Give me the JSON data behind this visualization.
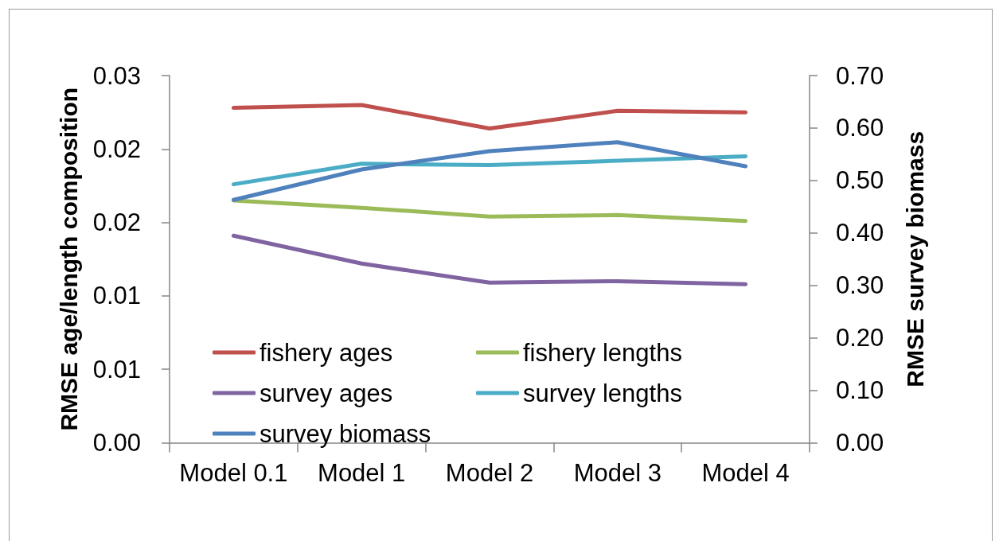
{
  "chart_data": {
    "type": "line",
    "ylabel": "RMSE age/length composition",
    "y2label": "RMSE survey biomass",
    "categories": [
      "Model 0.1",
      "Model 1",
      "Model 2",
      "Model 3",
      "Model 4"
    ],
    "series": [
      {
        "name": "fishery ages",
        "color": "#c0504d",
        "values": [
          0.0228,
          0.023,
          0.0214,
          0.0226,
          0.0225
        ]
      },
      {
        "name": "fishery lengths",
        "color": "#9bbb59",
        "values": [
          0.0165,
          0.016,
          0.0154,
          0.0155,
          0.0151
        ]
      },
      {
        "name": "survey ages",
        "color": "#8064a2",
        "values": [
          0.0141,
          0.0122,
          0.0109,
          0.011,
          0.0108
        ]
      },
      {
        "name": "survey lengths",
        "color": "#4bacc6",
        "values": [
          0.0176,
          0.019,
          0.0189,
          0.0192,
          0.0195
        ]
      },
      {
        "name": "survey biomass",
        "color": "#4f81bd",
        "axis": "y2",
        "values": [
          0.463,
          0.521,
          0.556,
          0.573,
          0.527
        ]
      }
    ],
    "ylim": [
      0,
      0.025
    ],
    "yticks": [
      {
        "value": 0,
        "label": "0.00"
      },
      {
        "value": 0.005,
        "label": "0.01"
      },
      {
        "value": 0.01,
        "label": "0.01"
      },
      {
        "value": 0.015,
        "label": "0.02"
      },
      {
        "value": 0.02,
        "label": "0.02"
      },
      {
        "value": 0.025,
        "label": "0.03"
      }
    ],
    "y2lim": [
      0,
      0.7
    ],
    "y2ticks": [
      {
        "value": 0,
        "label": "0.00"
      },
      {
        "value": 0.1,
        "label": "0.10"
      },
      {
        "value": 0.2,
        "label": "0.20"
      },
      {
        "value": 0.3,
        "label": "0.30"
      },
      {
        "value": 0.4,
        "label": "0.40"
      },
      {
        "value": 0.5,
        "label": "0.50"
      },
      {
        "value": 0.6,
        "label": "0.60"
      },
      {
        "value": 0.7,
        "label": "0.70"
      }
    ],
    "legend": "bottom left",
    "grid": false,
    "marker": "none",
    "line_style": "solid"
  }
}
